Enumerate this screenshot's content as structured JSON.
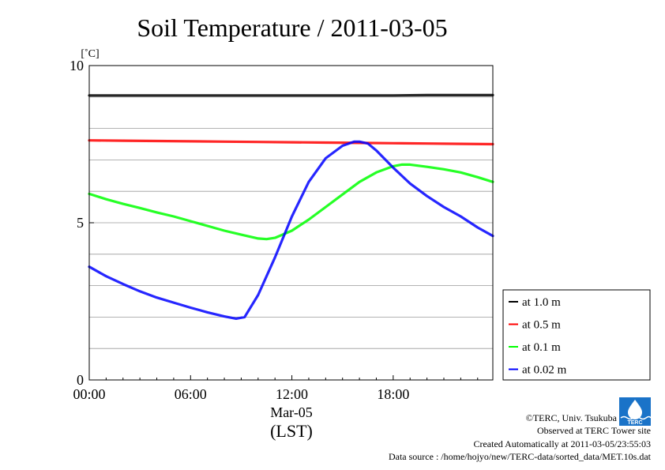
{
  "chart_data": {
    "type": "line",
    "title": "Soil Temperature / 2011-03-05",
    "ylabel": "[˚C]",
    "xlabel_date": "Mar-05",
    "xlabel_unit": "(LST)",
    "xlim": [
      0,
      23.9
    ],
    "ylim": [
      0,
      10
    ],
    "x_ticks": [
      0,
      6,
      12,
      18
    ],
    "x_tick_labels": [
      "00:00",
      "06:00",
      "12:00",
      "18:00"
    ],
    "y_ticks": [
      0,
      5,
      10
    ],
    "y_tick_labels": [
      "0",
      "5",
      "10"
    ],
    "grid": "horizontal",
    "legend_position": "lower-right-outside",
    "series": [
      {
        "name": "at 1.0 m",
        "color": "#000000",
        "x": [
          0,
          2,
          4,
          6,
          8,
          10,
          12,
          14,
          16,
          18,
          20,
          22,
          23.9
        ],
        "y": [
          9.05,
          9.05,
          9.05,
          9.05,
          9.05,
          9.05,
          9.05,
          9.05,
          9.05,
          9.05,
          9.06,
          9.06,
          9.06
        ]
      },
      {
        "name": "at 0.5 m",
        "color": "#ff0000",
        "x": [
          0,
          2,
          4,
          6,
          8,
          10,
          12,
          14,
          16,
          18,
          20,
          22,
          23.9
        ],
        "y": [
          7.62,
          7.61,
          7.6,
          7.59,
          7.58,
          7.57,
          7.56,
          7.55,
          7.54,
          7.53,
          7.52,
          7.51,
          7.5
        ]
      },
      {
        "name": "at 0.1 m",
        "color": "#00ff00",
        "x": [
          0,
          1,
          2,
          3,
          4,
          5,
          6,
          7,
          8,
          9,
          10,
          10.5,
          11,
          12,
          13,
          14,
          15,
          16,
          17,
          18,
          18.5,
          19,
          20,
          21,
          22,
          23,
          23.9
        ],
        "y": [
          5.92,
          5.75,
          5.6,
          5.47,
          5.33,
          5.2,
          5.05,
          4.9,
          4.75,
          4.62,
          4.5,
          4.48,
          4.52,
          4.75,
          5.1,
          5.5,
          5.9,
          6.3,
          6.6,
          6.8,
          6.85,
          6.85,
          6.78,
          6.7,
          6.6,
          6.45,
          6.3
        ]
      },
      {
        "name": "at 0.02 m",
        "color": "#0000ff",
        "x": [
          0,
          1,
          2,
          3,
          4,
          5,
          6,
          7,
          8,
          8.7,
          9.2,
          10,
          11,
          12,
          13,
          14,
          15,
          15.7,
          16,
          16.5,
          17,
          18,
          19,
          20,
          21,
          22,
          23,
          23.9
        ],
        "y": [
          3.6,
          3.3,
          3.05,
          2.82,
          2.62,
          2.46,
          2.3,
          2.15,
          2.02,
          1.95,
          2.0,
          2.7,
          3.9,
          5.2,
          6.3,
          7.05,
          7.45,
          7.58,
          7.58,
          7.52,
          7.3,
          6.75,
          6.25,
          5.85,
          5.5,
          5.2,
          4.85,
          4.58
        ]
      }
    ]
  },
  "footer": {
    "copyright": "©TERC, Univ. Tsukuba",
    "observed": "Observed at TERC Tower site",
    "created": "Created Automatically at 2011-03-05/23:55:03",
    "source": "Data source : /home/hojyo/new/TERC-data/sorted_data/MET.10s.dat",
    "logo_text": "TERC"
  }
}
